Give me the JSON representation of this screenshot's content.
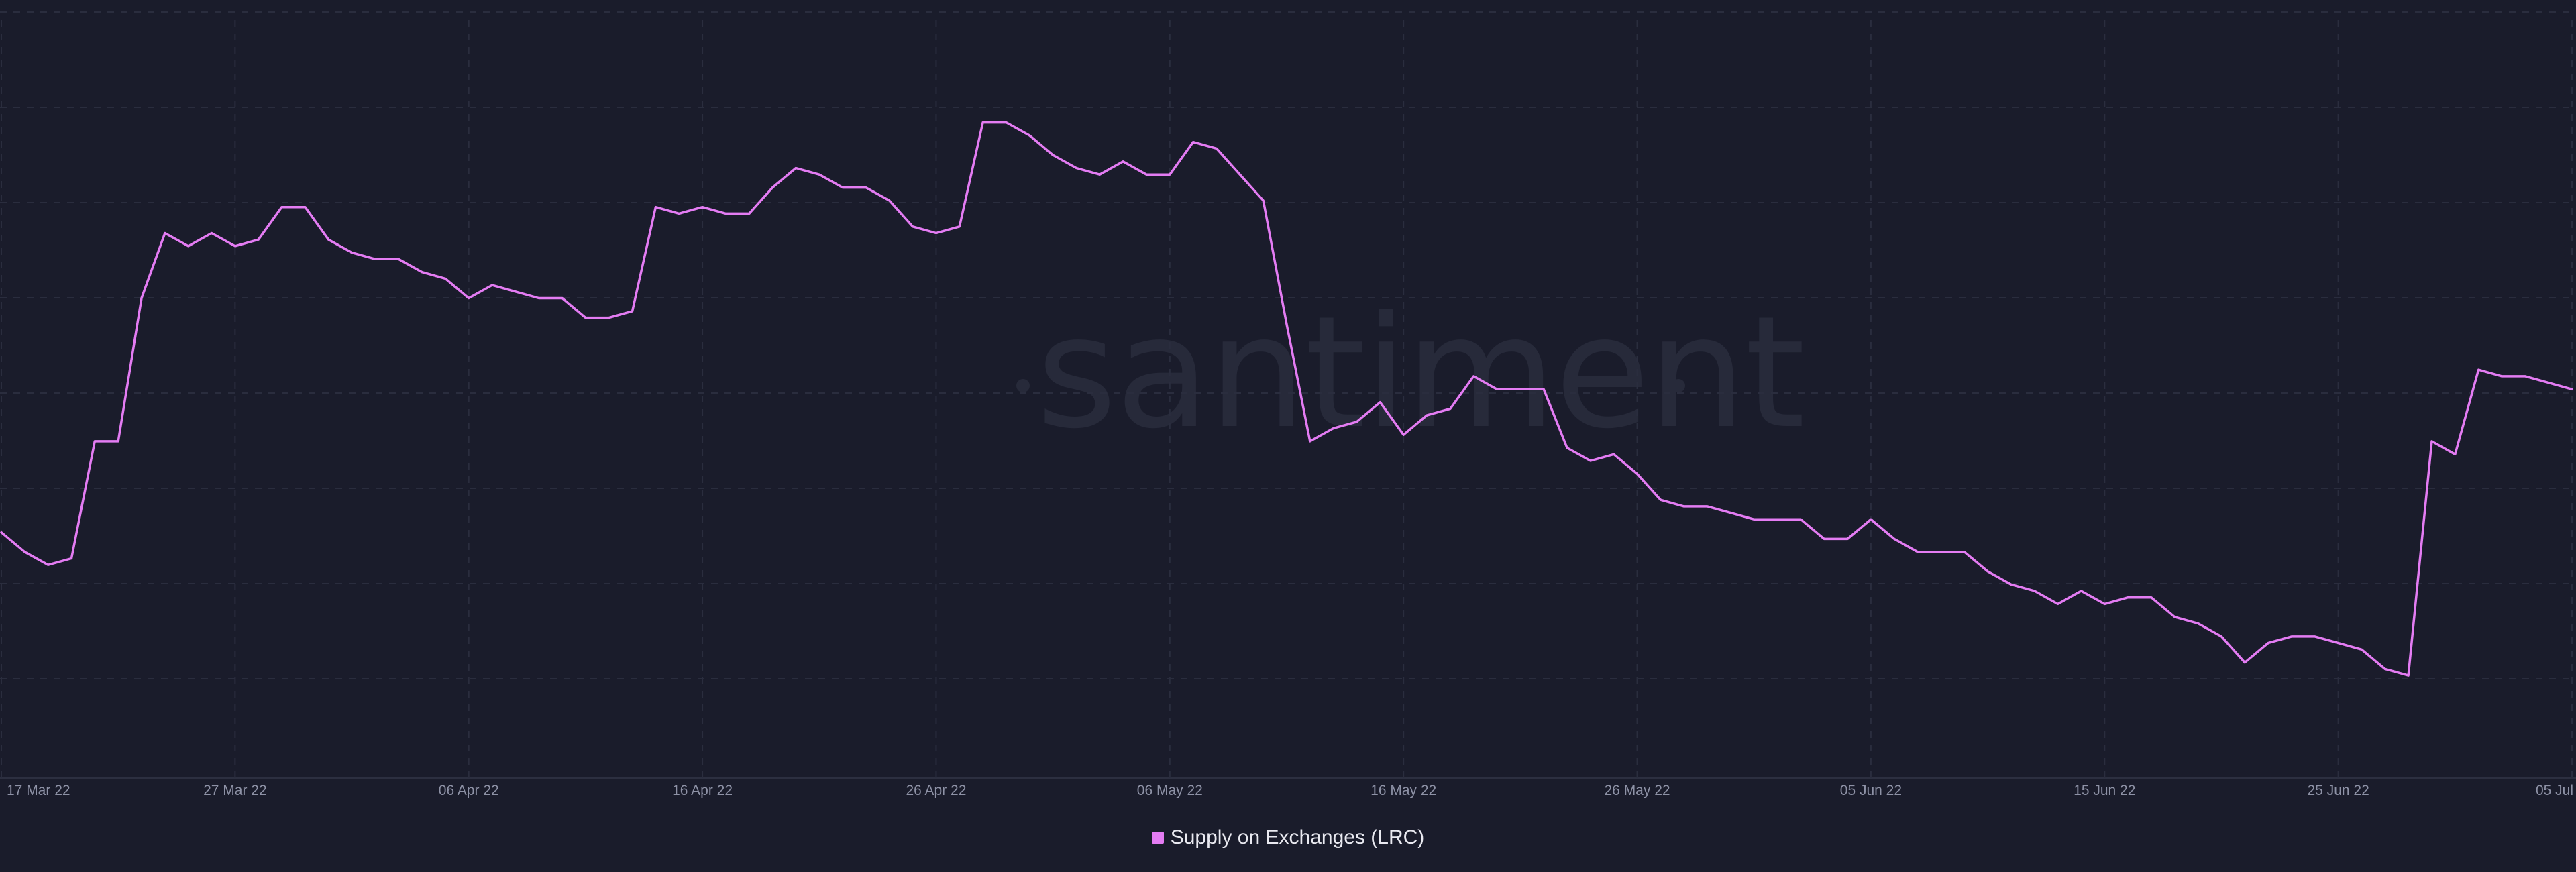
{
  "watermark": "santiment",
  "chart_data": {
    "type": "line",
    "x_tick_labels": [
      "17 Mar 22",
      "27 Mar 22",
      "06 Apr 22",
      "16 Apr 22",
      "26 Apr 22",
      "06 May 22",
      "16 May 22",
      "26 May 22",
      "05 Jun 22",
      "15 Jun 22",
      "25 Jun 22",
      "05 Jul"
    ],
    "x_range": [
      "2022-03-17",
      "2022-07-05"
    ],
    "y_axis_labels": "none",
    "grid": true,
    "legend_position": "bottom-center",
    "series": [
      {
        "name": "Supply on Exchanges (LRC)",
        "color": "#e47cf3",
        "x": [
          "2022-03-17",
          "2022-03-18",
          "2022-03-19",
          "2022-03-20",
          "2022-03-21",
          "2022-03-22",
          "2022-03-23",
          "2022-03-24",
          "2022-03-25",
          "2022-03-26",
          "2022-03-27",
          "2022-03-28",
          "2022-03-29",
          "2022-03-30",
          "2022-03-31",
          "2022-04-01",
          "2022-04-02",
          "2022-04-03",
          "2022-04-04",
          "2022-04-05",
          "2022-04-06",
          "2022-04-07",
          "2022-04-08",
          "2022-04-09",
          "2022-04-10",
          "2022-04-11",
          "2022-04-12",
          "2022-04-13",
          "2022-04-14",
          "2022-04-15",
          "2022-04-16",
          "2022-04-17",
          "2022-04-18",
          "2022-04-19",
          "2022-04-20",
          "2022-04-21",
          "2022-04-22",
          "2022-04-23",
          "2022-04-24",
          "2022-04-25",
          "2022-04-26",
          "2022-04-27",
          "2022-04-28",
          "2022-04-29",
          "2022-04-30",
          "2022-05-01",
          "2022-05-02",
          "2022-05-03",
          "2022-05-04",
          "2022-05-05",
          "2022-05-06",
          "2022-05-07",
          "2022-05-08",
          "2022-05-09",
          "2022-05-10",
          "2022-05-11",
          "2022-05-12",
          "2022-05-13",
          "2022-05-14",
          "2022-05-15",
          "2022-05-16",
          "2022-05-17",
          "2022-05-18",
          "2022-05-19",
          "2022-05-20",
          "2022-05-21",
          "2022-05-22",
          "2022-05-23",
          "2022-05-24",
          "2022-05-25",
          "2022-05-26",
          "2022-05-27",
          "2022-05-28",
          "2022-05-29",
          "2022-05-30",
          "2022-05-31",
          "2022-06-01",
          "2022-06-02",
          "2022-06-03",
          "2022-06-04",
          "2022-06-05",
          "2022-06-06",
          "2022-06-07",
          "2022-06-08",
          "2022-06-09",
          "2022-06-10",
          "2022-06-11",
          "2022-06-12",
          "2022-06-13",
          "2022-06-14",
          "2022-06-15",
          "2022-06-16",
          "2022-06-17",
          "2022-06-18",
          "2022-06-19",
          "2022-06-20",
          "2022-06-21",
          "2022-06-22",
          "2022-06-23",
          "2022-06-24",
          "2022-06-25",
          "2022-06-26",
          "2022-06-27",
          "2022-06-28",
          "2022-06-29",
          "2022-06-30",
          "2022-07-01",
          "2022-07-02",
          "2022-07-03",
          "2022-07-04",
          "2022-07-05"
        ],
        "values": [
          0.29,
          0.26,
          0.24,
          0.25,
          0.43,
          0.43,
          0.65,
          0.75,
          0.73,
          0.75,
          0.73,
          0.74,
          0.79,
          0.79,
          0.74,
          0.72,
          0.71,
          0.71,
          0.69,
          0.68,
          0.65,
          0.67,
          0.66,
          0.65,
          0.65,
          0.62,
          0.62,
          0.63,
          0.79,
          0.78,
          0.79,
          0.78,
          0.78,
          0.82,
          0.85,
          0.84,
          0.82,
          0.82,
          0.8,
          0.76,
          0.75,
          0.76,
          0.92,
          0.92,
          0.9,
          0.87,
          0.85,
          0.84,
          0.86,
          0.84,
          0.84,
          0.89,
          0.88,
          0.84,
          0.8,
          0.61,
          0.43,
          0.45,
          0.46,
          0.49,
          0.44,
          0.47,
          0.48,
          0.53,
          0.51,
          0.51,
          0.51,
          0.42,
          0.4,
          0.41,
          0.38,
          0.34,
          0.33,
          0.33,
          0.32,
          0.31,
          0.31,
          0.31,
          0.28,
          0.28,
          0.31,
          0.28,
          0.26,
          0.26,
          0.26,
          0.23,
          0.21,
          0.2,
          0.18,
          0.2,
          0.18,
          0.19,
          0.19,
          0.16,
          0.15,
          0.13,
          0.09,
          0.12,
          0.13,
          0.13,
          0.12,
          0.11,
          0.08,
          0.07,
          0.43,
          0.41,
          0.54,
          0.53,
          0.53,
          0.52,
          0.51
        ]
      }
    ]
  }
}
